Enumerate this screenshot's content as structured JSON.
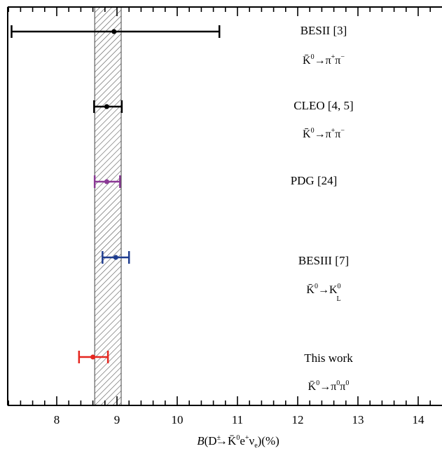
{
  "chart_data": {
    "type": "scatter",
    "xlabel": "B(D±→K̄⁰e⁺νₑ)(%)",
    "xlim": [
      7.2,
      14.4
    ],
    "x_ticks": [
      "8",
      "9",
      "10",
      "11",
      "12",
      "13",
      "14"
    ],
    "grid": false,
    "band": {
      "low": 8.63,
      "high": 9.07
    },
    "points": [
      {
        "label": "BESII [3]",
        "sublabel": "K̄⁰→π⁺π⁻",
        "value": 8.95,
        "err_low": 7.25,
        "err_high": 10.7,
        "color": "#000000"
      },
      {
        "label": "CLEO [4, 5]",
        "sublabel": "K̄⁰→π⁺π⁻",
        "value": 8.83,
        "err_low": 8.62,
        "err_high": 9.08,
        "color": "#000000"
      },
      {
        "label": "PDG [24]",
        "sublabel": "",
        "value": 8.83,
        "err_low": 8.63,
        "err_high": 9.05,
        "color": "#8b3a96"
      },
      {
        "label": "BESIII [7]",
        "sublabel": "K̄⁰→K⁰L",
        "value": 8.98,
        "err_low": 8.76,
        "err_high": 9.2,
        "color": "#1f3d8f"
      },
      {
        "label": "This work",
        "sublabel": "K̄⁰→π⁰π⁰",
        "value": 8.6,
        "err_low": 8.37,
        "err_high": 8.85,
        "color": "#e5261f"
      }
    ]
  }
}
